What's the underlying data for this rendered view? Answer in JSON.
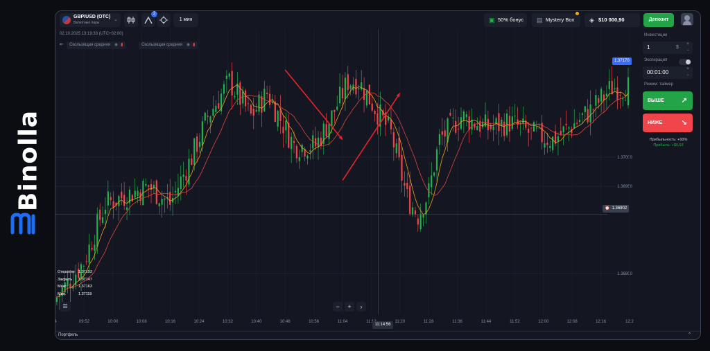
{
  "brand": {
    "name": "Binolla",
    "color": "#1e6ef5"
  },
  "topbar": {
    "pair_name": "GBP/USD (OTC)",
    "pair_sub": "Валютные пары",
    "indicator_badge": "2",
    "timeframe": "1 мин",
    "bonus_label": "50% бонус",
    "mystery_label": "Mystery Box",
    "balance": "$10 000,90",
    "deposit_label": "Депозит"
  },
  "chart": {
    "date_time": "02.10.2025 13:19:33 (UTC+02:00)",
    "indicators": [
      {
        "label": "Скользящая средняя",
        "color": "#f0a020"
      },
      {
        "label": "Скользящая средняя",
        "color": "#e0463f"
      }
    ],
    "ohlc": [
      {
        "key": "Открытие",
        "value": "1.37153"
      },
      {
        "key": "Закрыть",
        "value": "1.37147"
      },
      {
        "key": "Макс.",
        "value": "1.37163"
      },
      {
        "key": "Мин.",
        "value": "1.37119"
      }
    ],
    "current_price": "1.37170",
    "hover_price": "1.36902",
    "hover_time": "11:14:56",
    "zoom_minus": "−",
    "zoom_plus": "+",
    "zoom_next": "›",
    "portfolio_label": "Портфель"
  },
  "chart_data": {
    "type": "candlestick",
    "x_ticks": [
      "4",
      "09:52",
      "10:00",
      "10:08",
      "10:16",
      "10:24",
      "10:32",
      "10:40",
      "10:48",
      "10:56",
      "11:04",
      "11:12",
      "11:20",
      "11:28",
      "11:36",
      "11:44",
      "11:52",
      "12:00",
      "12:08",
      "12:16",
      "12:2"
    ],
    "y_ticks": [
      {
        "value": 1.37,
        "label": "1.37000"
      },
      {
        "value": 1.3695,
        "label": "1.36950"
      },
      {
        "value": 1.368,
        "label": "1.36800"
      }
    ],
    "ylim": [
      1.3673,
      1.3722
    ],
    "colors": {
      "up": "#22b14c",
      "down": "#f0454b",
      "ma_fast": "#f0a020",
      "ma_slow": "#e0463f"
    },
    "anchors": [
      {
        "i": 0,
        "v": 1.3676
      },
      {
        "i": 10,
        "v": 1.3682
      },
      {
        "i": 18,
        "v": 1.3692
      },
      {
        "i": 34,
        "v": 1.3695
      },
      {
        "i": 42,
        "v": 1.3692
      },
      {
        "i": 50,
        "v": 1.37
      },
      {
        "i": 56,
        "v": 1.3707
      },
      {
        "i": 64,
        "v": 1.3713
      },
      {
        "i": 72,
        "v": 1.3707
      },
      {
        "i": 78,
        "v": 1.3711
      },
      {
        "i": 88,
        "v": 1.3702
      },
      {
        "i": 96,
        "v": 1.3702
      },
      {
        "i": 102,
        "v": 1.3707
      },
      {
        "i": 108,
        "v": 1.3713
      },
      {
        "i": 112,
        "v": 1.3713
      },
      {
        "i": 116,
        "v": 1.371
      },
      {
        "i": 124,
        "v": 1.3704
      },
      {
        "i": 130,
        "v": 1.3693
      },
      {
        "i": 134,
        "v": 1.369
      },
      {
        "i": 138,
        "v": 1.3694
      },
      {
        "i": 142,
        "v": 1.3703
      },
      {
        "i": 150,
        "v": 1.3707
      },
      {
        "i": 160,
        "v": 1.3705
      },
      {
        "i": 168,
        "v": 1.3706
      },
      {
        "i": 176,
        "v": 1.3704
      },
      {
        "i": 184,
        "v": 1.3703
      },
      {
        "i": 190,
        "v": 1.3705
      },
      {
        "i": 198,
        "v": 1.3708
      },
      {
        "i": 206,
        "v": 1.3712
      },
      {
        "i": 212,
        "v": 1.3712
      }
    ],
    "arrows": [
      {
        "from": {
          "x_tick": "10:48",
          "y": 1.3715
        },
        "to": {
          "x_tick": "11:04",
          "y": 1.3703
        }
      },
      {
        "from": {
          "x_tick": "11:04",
          "y": 1.3696
        },
        "to": {
          "x_tick": "11:20",
          "y": 1.3711
        }
      }
    ]
  },
  "sidebar": {
    "invest_label": "Инвестиции",
    "invest_value": "1",
    "currency": "$",
    "expiry_label": "Экспирация",
    "expiry_value": "00:01:00",
    "mode_label": "Режим: таймер",
    "up_label": "ВЫШЕ",
    "down_label": "НИЖЕ",
    "profit_pct": "Прибыльность: +93%",
    "profit_amount": "Прибыль: +$0,93",
    "up_color": "#22a447",
    "down_color": "#f0454b"
  }
}
